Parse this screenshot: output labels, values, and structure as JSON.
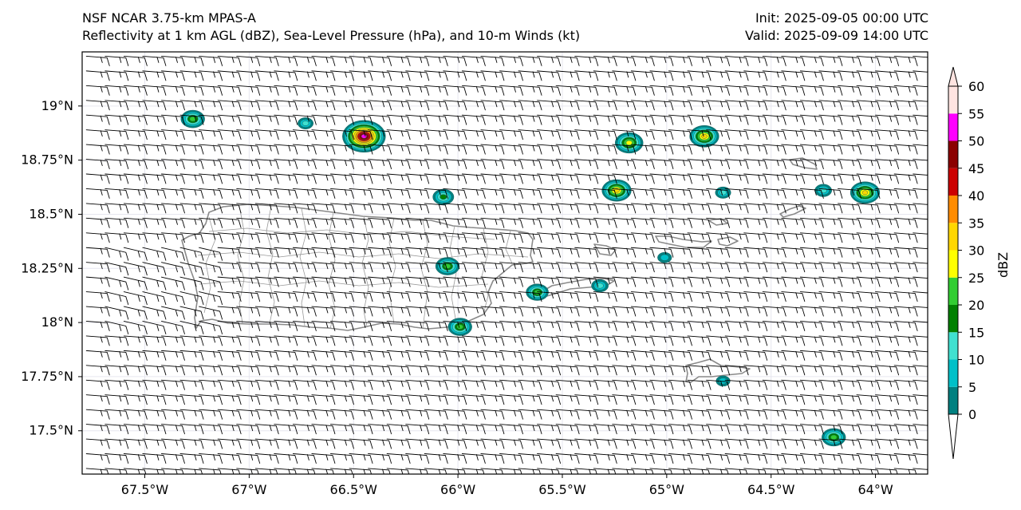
{
  "header": {
    "model": "NSF NCAR 3.75-km MPAS-A",
    "fields": "Reflectivity at 1 km AGL (dBZ), Sea-Level Pressure (hPa), and 10-m Winds (kt)",
    "init": "Init: 2025-09-05 00:00 UTC",
    "valid": "Valid: 2025-09-09 14:00 UTC"
  },
  "map": {
    "extent": {
      "lon_min": -67.8,
      "lon_max": -63.75,
      "lat_min": 17.3,
      "lat_max": 19.25
    },
    "lon_ticks": [
      {
        "value": -67.5,
        "label": "67.5°W"
      },
      {
        "value": -67.0,
        "label": "67°W"
      },
      {
        "value": -66.5,
        "label": "66.5°W"
      },
      {
        "value": -66.0,
        "label": "66°W"
      },
      {
        "value": -65.5,
        "label": "65.5°W"
      },
      {
        "value": -65.0,
        "label": "65°W"
      },
      {
        "value": -64.5,
        "label": "64.5°W"
      },
      {
        "value": -64.0,
        "label": "64°W"
      }
    ],
    "lat_ticks": [
      {
        "value": 19.0,
        "label": "19°N"
      },
      {
        "value": 18.75,
        "label": "18.75°N"
      },
      {
        "value": 18.5,
        "label": "18.5°N"
      },
      {
        "value": 18.25,
        "label": "18.25°N"
      },
      {
        "value": 18.0,
        "label": "18°N"
      },
      {
        "value": 17.75,
        "label": "17.75°N"
      },
      {
        "value": 17.5,
        "label": "17.5°N"
      }
    ],
    "reflectivity_cells": [
      {
        "lon": -67.27,
        "lat": 18.94,
        "peak_dbz": 22
      },
      {
        "lon": -66.73,
        "lat": 18.92,
        "peak_dbz": 10
      },
      {
        "lon": -66.45,
        "lat": 18.86,
        "peak_dbz": 50
      },
      {
        "lon": -66.07,
        "lat": 18.58,
        "peak_dbz": 18
      },
      {
        "lon": -66.05,
        "lat": 18.26,
        "peak_dbz": 22
      },
      {
        "lon": -65.62,
        "lat": 18.14,
        "peak_dbz": 20
      },
      {
        "lon": -65.99,
        "lat": 17.98,
        "peak_dbz": 22
      },
      {
        "lon": -65.24,
        "lat": 18.61,
        "peak_dbz": 30
      },
      {
        "lon": -65.18,
        "lat": 18.83,
        "peak_dbz": 28
      },
      {
        "lon": -64.82,
        "lat": 18.86,
        "peak_dbz": 30
      },
      {
        "lon": -64.73,
        "lat": 18.6,
        "peak_dbz": 10
      },
      {
        "lon": -65.32,
        "lat": 18.17,
        "peak_dbz": 12
      },
      {
        "lon": -65.01,
        "lat": 18.3,
        "peak_dbz": 8
      },
      {
        "lon": -64.73,
        "lat": 17.73,
        "peak_dbz": 8
      },
      {
        "lon": -64.2,
        "lat": 17.47,
        "peak_dbz": 22
      },
      {
        "lon": -64.05,
        "lat": 18.6,
        "peak_dbz": 30
      },
      {
        "lon": -64.25,
        "lat": 18.61,
        "peak_dbz": 12
      }
    ],
    "wind_barbs": {
      "lon_step": 0.09,
      "lat_step": 0.068,
      "direction": "easterly",
      "typical_speed_kt": 15,
      "calm_points": 8
    }
  },
  "colorbar": {
    "label": "dBZ",
    "levels": [
      0,
      5,
      10,
      15,
      20,
      25,
      30,
      35,
      40,
      45,
      50,
      55,
      60
    ],
    "colors": [
      "#008080",
      "#00c0c8",
      "#40e0d0",
      "#008000",
      "#32cd32",
      "#ffff00",
      "#ffd700",
      "#ff8c00",
      "#cc0000",
      "#8b0000",
      "#ff00ff",
      "#ffe4e1"
    ],
    "under_color": "#ffffff",
    "over_color": "#ffe4e1"
  }
}
